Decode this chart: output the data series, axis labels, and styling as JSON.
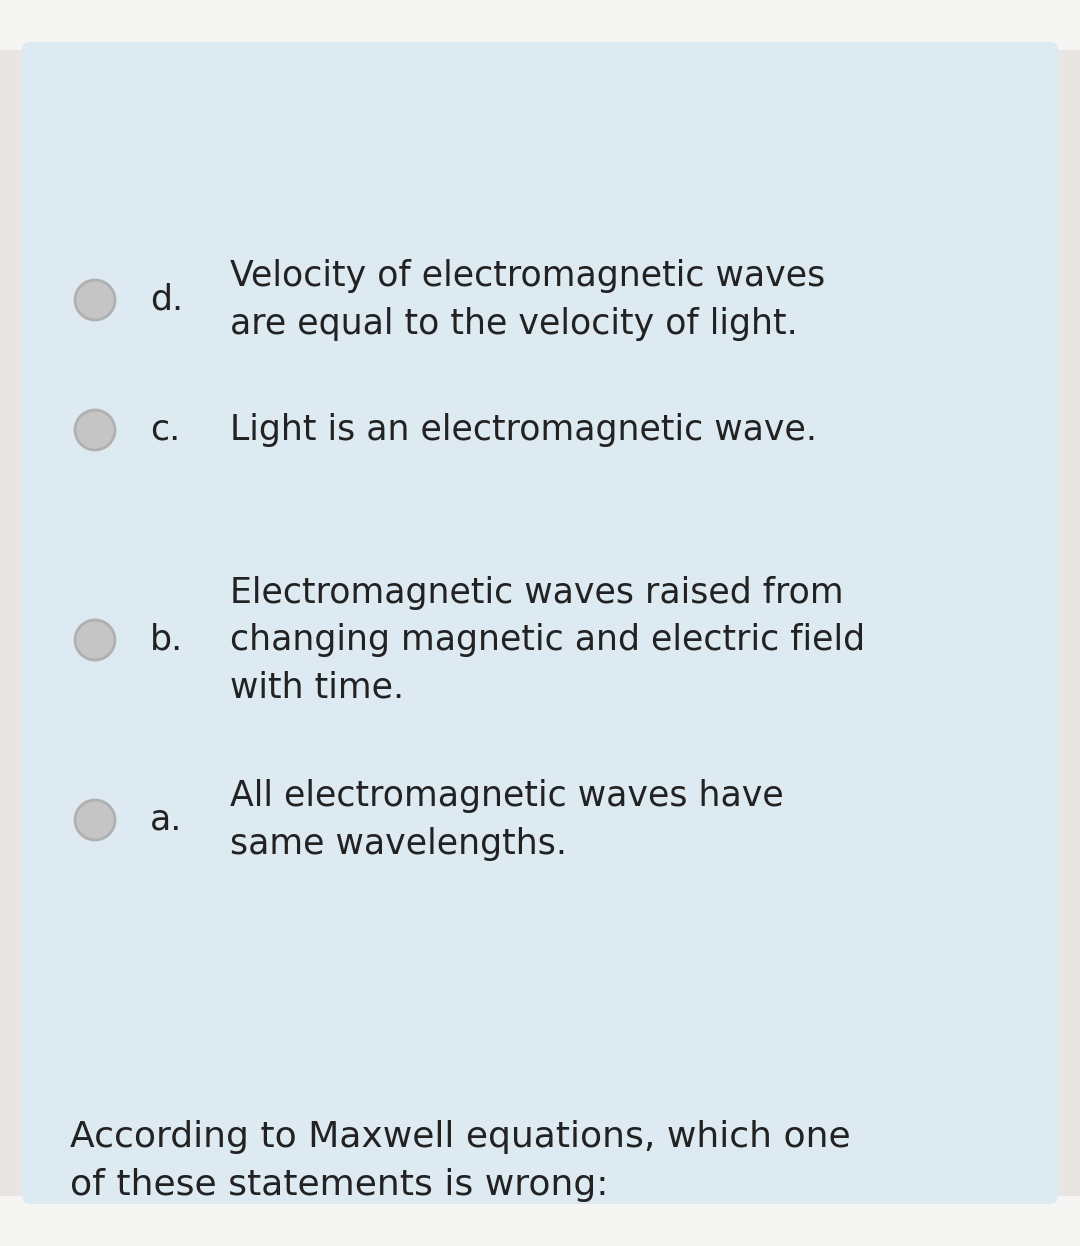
{
  "bg_outer": "#e8e5e2",
  "bg_top_bottom": "#f5f5f3",
  "bg_card": "#ddeaf2",
  "text_color": "#222222",
  "circle_fill": "#c5c5c5",
  "circle_edge": "#b0b0b0",
  "question": "According to Maxwell equations, which one\nof these statements is wrong:",
  "question_fontsize": 26,
  "options": [
    {
      "label": "a.",
      "text": "All electromagnetic waves have\nsame wavelengths."
    },
    {
      "label": "b.",
      "text": "Electromagnetic waves raised from\nchanging magnetic and electric field\nwith time."
    },
    {
      "label": "c.",
      "text": "Light is an electromagnetic wave."
    },
    {
      "label": "d.",
      "text": "Velocity of electromagnetic waves\nare equal to the velocity of light."
    }
  ],
  "option_fontsize": 25,
  "label_fontsize": 25,
  "figwidth": 10.8,
  "figheight": 12.46,
  "dpi": 100
}
